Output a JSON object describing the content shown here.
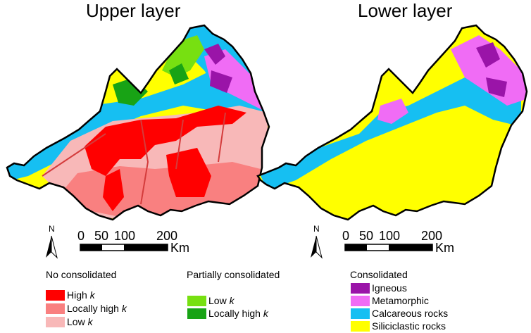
{
  "maps": {
    "upper": {
      "title": "Upper layer"
    },
    "lower": {
      "title": "Lower layer"
    }
  },
  "scale_bar": {
    "ticks": [
      "0",
      "50",
      "100",
      "200"
    ],
    "unit": "Km",
    "north_label": "N"
  },
  "legend": {
    "no_consolidated": {
      "heading": "No consolidated",
      "items": [
        {
          "label": "High ",
          "k": "k",
          "color": "#ff0000"
        },
        {
          "label": "Locally high ",
          "k": "k",
          "color": "#f98080"
        },
        {
          "label": "Low ",
          "k": "k",
          "color": "#f8b8b8"
        }
      ]
    },
    "partially_consolidated": {
      "heading": "Partially consolidated",
      "items": [
        {
          "label": "Low ",
          "k": "k",
          "color": "#77e011"
        },
        {
          "label": "Locally high ",
          "k": "k",
          "color": "#18a315"
        }
      ]
    },
    "consolidated": {
      "heading": "Consolidated",
      "items": [
        {
          "label": "Igneous",
          "color": "#9a14a8"
        },
        {
          "label": "Metamorphic",
          "color": "#f06cf5"
        },
        {
          "label": "Calcareous rocks",
          "color": "#16bff2"
        },
        {
          "label": "Siliciclastic rocks",
          "color": "#ffff00"
        }
      ]
    }
  },
  "colors": {
    "outline": "#000000",
    "river": "#d43c3c",
    "background": "#ffffff"
  }
}
